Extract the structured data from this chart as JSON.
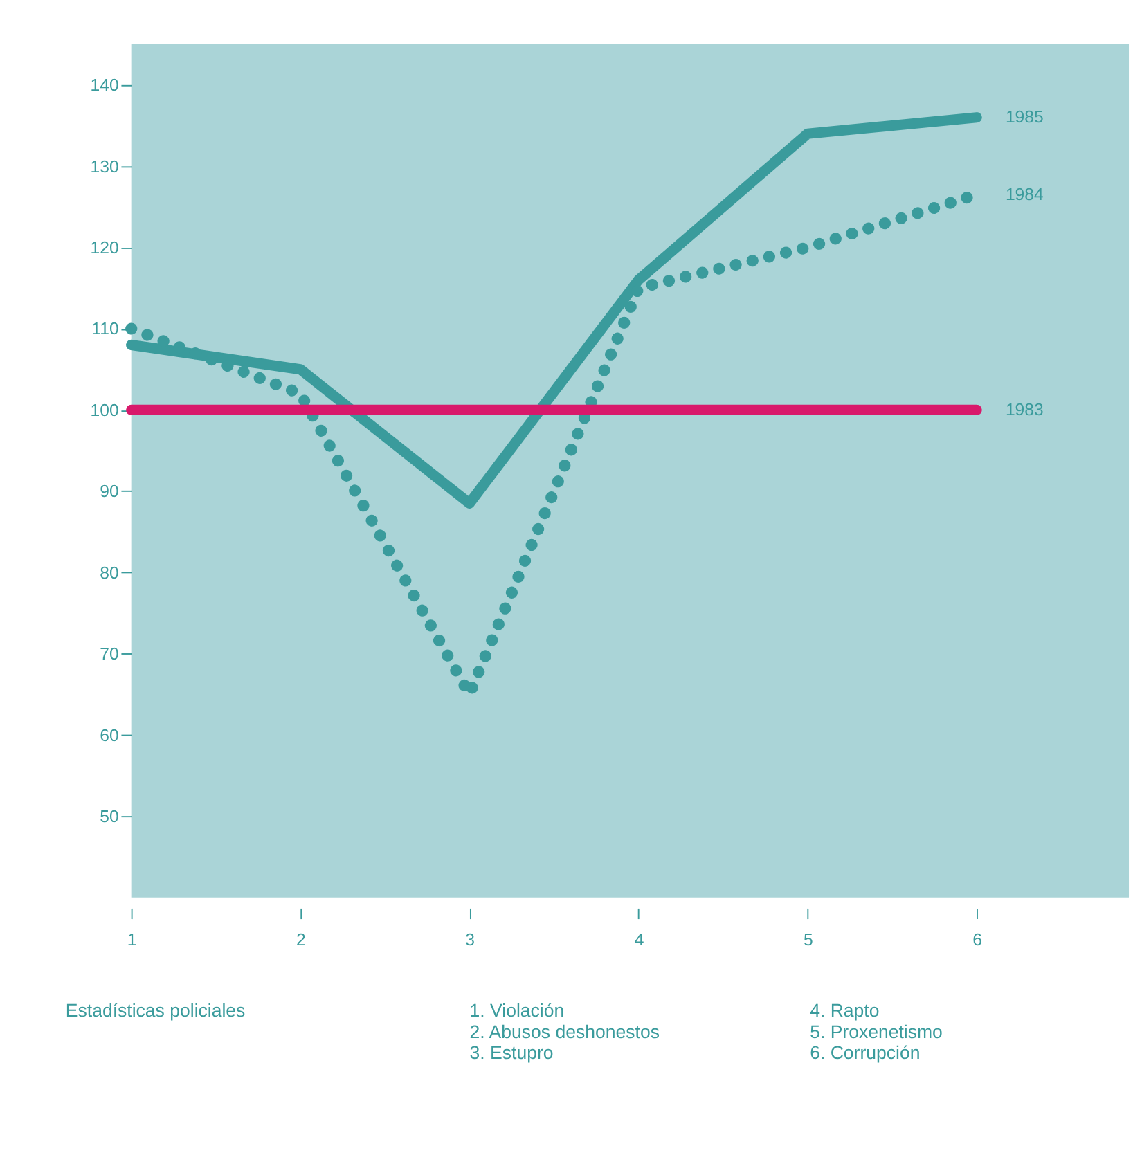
{
  "chart_data": {
    "type": "line",
    "x": [
      1,
      2,
      3,
      4,
      5,
      6
    ],
    "series": [
      {
        "name": "1985",
        "color": "#3a9b9c",
        "line_style": "solid",
        "values": [
          108,
          105,
          88.5,
          116,
          134,
          136
        ]
      },
      {
        "name": "1984",
        "color": "#3a9b9c",
        "line_style": "dotted",
        "values": [
          110,
          102,
          65,
          115,
          120,
          126.5
        ]
      },
      {
        "name": "1983",
        "color": "#d8196b",
        "line_style": "solid",
        "values": [
          100,
          100,
          100,
          100,
          100,
          100
        ]
      }
    ],
    "xlim": [
      1,
      6.9
    ],
    "xticks": [
      1,
      2,
      3,
      4,
      5,
      6
    ],
    "ylim": [
      40,
      145
    ],
    "yticks": [
      50,
      60,
      70,
      80,
      90,
      100,
      110,
      120,
      130,
      140
    ],
    "grid": false,
    "legend": false,
    "marker": "none",
    "annotations": [
      "Estadísticas policiales",
      "1. Violación\n2. Abusos deshonestos\n3. Estupro",
      "4. Rapto\n5. Proxenetismo\n6. Corrupción"
    ]
  }
}
